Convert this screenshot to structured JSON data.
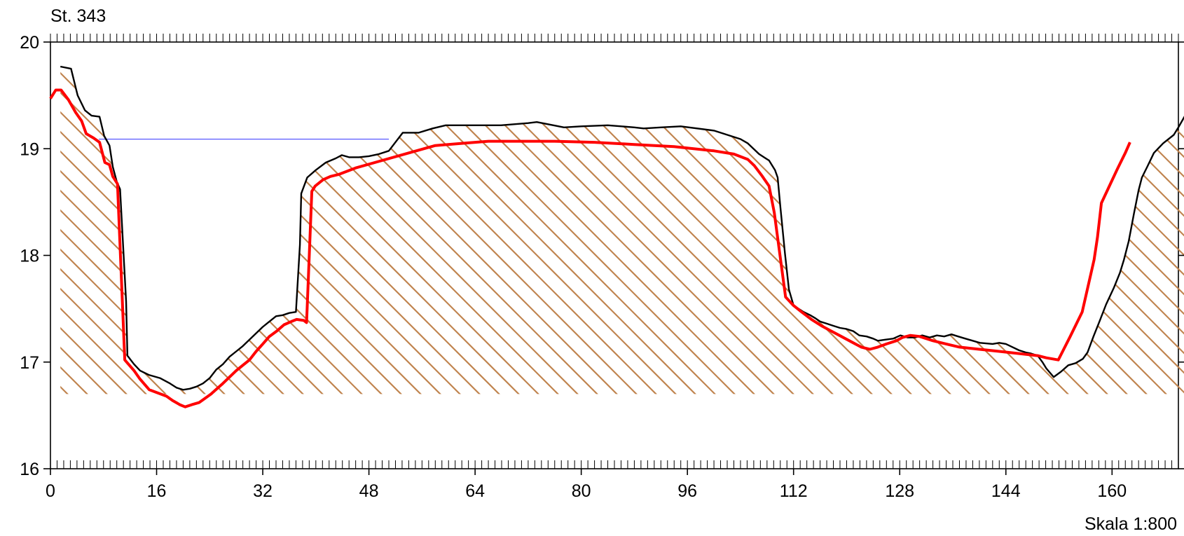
{
  "chart_data": {
    "type": "line",
    "title": "St. 343",
    "scale_label": "Skala 1:800",
    "xlim": [
      0,
      170
    ],
    "ylim": [
      16,
      20
    ],
    "x_ticks": [
      0,
      16,
      32,
      48,
      64,
      80,
      96,
      112,
      128,
      144,
      160
    ],
    "y_ticks": [
      16,
      17,
      18,
      19,
      20
    ],
    "grid": false,
    "colors": {
      "terrain": "#000000",
      "design": "#ff0000",
      "water": "#4a4aff",
      "hatch": "#c0844f"
    },
    "water_level": {
      "y": 19.09,
      "x_start": 7.3,
      "x_end": 51
    },
    "hatch_base": 16.7,
    "series": [
      {
        "key": "terrain",
        "points": [
          [
            1.5,
            19.77
          ],
          [
            3.1,
            19.75
          ],
          [
            4.1,
            19.5
          ],
          [
            5.2,
            19.36
          ],
          [
            6.2,
            19.31
          ],
          [
            7.4,
            19.3
          ],
          [
            8.1,
            19.12
          ],
          [
            8.9,
            19.03
          ],
          [
            9.4,
            18.83
          ],
          [
            10.0,
            18.69
          ],
          [
            10.5,
            18.62
          ],
          [
            11.4,
            17.57
          ],
          [
            11.6,
            17.06
          ],
          [
            12.6,
            16.98
          ],
          [
            13.5,
            16.92
          ],
          [
            14.8,
            16.88
          ],
          [
            16.5,
            16.85
          ],
          [
            18.0,
            16.8
          ],
          [
            19.0,
            16.76
          ],
          [
            20.0,
            16.74
          ],
          [
            21.0,
            16.75
          ],
          [
            22.0,
            16.77
          ],
          [
            23.0,
            16.8
          ],
          [
            24.0,
            16.85
          ],
          [
            25.0,
            16.93
          ],
          [
            26.0,
            16.98
          ],
          [
            27.0,
            17.05
          ],
          [
            28.0,
            17.1
          ],
          [
            29.0,
            17.15
          ],
          [
            30.0,
            17.21
          ],
          [
            31.0,
            17.27
          ],
          [
            32.0,
            17.33
          ],
          [
            33.0,
            17.38
          ],
          [
            34.0,
            17.43
          ],
          [
            35.0,
            17.44
          ],
          [
            36.0,
            17.46
          ],
          [
            37.0,
            17.47
          ],
          [
            37.6,
            18.1
          ],
          [
            37.8,
            18.58
          ],
          [
            38.7,
            18.73
          ],
          [
            40.0,
            18.8
          ],
          [
            41.5,
            18.87
          ],
          [
            43.0,
            18.91
          ],
          [
            43.9,
            18.94
          ],
          [
            45.0,
            18.92
          ],
          [
            46.5,
            18.92
          ],
          [
            48.0,
            18.93
          ],
          [
            49.5,
            18.95
          ],
          [
            51.0,
            18.98
          ],
          [
            53.1,
            19.15
          ],
          [
            55.5,
            19.15
          ],
          [
            57.6,
            19.19
          ],
          [
            59.6,
            19.22
          ],
          [
            63.7,
            19.22
          ],
          [
            67.9,
            19.22
          ],
          [
            72.0,
            19.24
          ],
          [
            73.3,
            19.25
          ],
          [
            75.8,
            19.22
          ],
          [
            77.4,
            19.2
          ],
          [
            80.0,
            19.21
          ],
          [
            84.0,
            19.22
          ],
          [
            88.0,
            19.2
          ],
          [
            89.4,
            19.19
          ],
          [
            92.0,
            19.2
          ],
          [
            95.0,
            19.21
          ],
          [
            100.0,
            19.17
          ],
          [
            101.0,
            19.15
          ],
          [
            104.0,
            19.09
          ],
          [
            105.1,
            19.05
          ],
          [
            106.8,
            18.95
          ],
          [
            107.8,
            18.91
          ],
          [
            108.3,
            18.89
          ],
          [
            109.2,
            18.8
          ],
          [
            109.6,
            18.73
          ],
          [
            110.0,
            18.46
          ],
          [
            110.7,
            18.02
          ],
          [
            111.3,
            17.68
          ],
          [
            112.0,
            17.53
          ],
          [
            113.5,
            17.47
          ],
          [
            114.5,
            17.44
          ],
          [
            115.3,
            17.41
          ],
          [
            116.0,
            17.38
          ],
          [
            117.0,
            17.36
          ],
          [
            118.0,
            17.34
          ],
          [
            119.0,
            17.32
          ],
          [
            120.0,
            17.31
          ],
          [
            121.0,
            17.29
          ],
          [
            121.9,
            17.25
          ],
          [
            123.0,
            17.24
          ],
          [
            124.0,
            17.22
          ],
          [
            124.7,
            17.2
          ],
          [
            125.8,
            17.21
          ],
          [
            127.0,
            17.22
          ],
          [
            128.1,
            17.25
          ],
          [
            129.2,
            17.23
          ],
          [
            130.3,
            17.23
          ],
          [
            131.4,
            17.25
          ],
          [
            132.5,
            17.23
          ],
          [
            133.6,
            17.25
          ],
          [
            134.7,
            17.24
          ],
          [
            135.8,
            17.26
          ],
          [
            136.8,
            17.24
          ],
          [
            137.9,
            17.22
          ],
          [
            139.0,
            17.2
          ],
          [
            140.1,
            17.18
          ],
          [
            142.0,
            17.17
          ],
          [
            143.0,
            17.18
          ],
          [
            144.0,
            17.17
          ],
          [
            145.0,
            17.14
          ],
          [
            146.0,
            17.11
          ],
          [
            147.0,
            17.09
          ],
          [
            147.8,
            17.08
          ],
          [
            148.8,
            17.06
          ],
          [
            149.5,
            17.0
          ],
          [
            150.1,
            16.94
          ],
          [
            151.2,
            16.86
          ],
          [
            152.3,
            16.91
          ],
          [
            153.4,
            16.97
          ],
          [
            154.5,
            16.99
          ],
          [
            155.6,
            17.03
          ],
          [
            156.3,
            17.09
          ],
          [
            157.2,
            17.24
          ],
          [
            158.1,
            17.38
          ],
          [
            159.1,
            17.54
          ],
          [
            160.3,
            17.7
          ],
          [
            161.2,
            17.84
          ],
          [
            161.8,
            17.96
          ],
          [
            162.5,
            18.13
          ],
          [
            163.3,
            18.39
          ],
          [
            164.0,
            18.61
          ],
          [
            164.5,
            18.73
          ],
          [
            165.3,
            18.83
          ],
          [
            166.3,
            18.96
          ],
          [
            167.7,
            19.05
          ],
          [
            169.3,
            19.13
          ],
          [
            170.0,
            19.2
          ],
          [
            171.0,
            19.31
          ]
        ]
      },
      {
        "key": "design",
        "points": [
          [
            0.0,
            19.47
          ],
          [
            0.8,
            19.55
          ],
          [
            1.6,
            19.55
          ],
          [
            2.7,
            19.46
          ],
          [
            3.8,
            19.34
          ],
          [
            4.7,
            19.26
          ],
          [
            5.4,
            19.14
          ],
          [
            6.5,
            19.1
          ],
          [
            7.4,
            19.06
          ],
          [
            8.2,
            18.87
          ],
          [
            8.9,
            18.85
          ],
          [
            9.4,
            18.74
          ],
          [
            10.1,
            18.67
          ],
          [
            11.2,
            17.02
          ],
          [
            12.6,
            16.92
          ],
          [
            13.5,
            16.84
          ],
          [
            14.9,
            16.74
          ],
          [
            16.2,
            16.71
          ],
          [
            17.5,
            16.68
          ],
          [
            18.4,
            16.64
          ],
          [
            19.5,
            16.6
          ],
          [
            20.3,
            16.58
          ],
          [
            21.3,
            16.6
          ],
          [
            22.4,
            16.62
          ],
          [
            23.3,
            16.66
          ],
          [
            24.2,
            16.7
          ],
          [
            25.1,
            16.75
          ],
          [
            26.0,
            16.8
          ],
          [
            27.0,
            16.86
          ],
          [
            28.0,
            16.92
          ],
          [
            29.0,
            16.97
          ],
          [
            30.0,
            17.02
          ],
          [
            31.0,
            17.1
          ],
          [
            32.0,
            17.17
          ],
          [
            33.0,
            17.24
          ],
          [
            34.1,
            17.29
          ],
          [
            35.2,
            17.35
          ],
          [
            36.3,
            17.38
          ],
          [
            37.1,
            17.4
          ],
          [
            38.2,
            17.39
          ],
          [
            38.6,
            17.37
          ],
          [
            39.4,
            18.6
          ],
          [
            39.9,
            18.65
          ],
          [
            41.1,
            18.71
          ],
          [
            42.2,
            18.74
          ],
          [
            43.5,
            18.76
          ],
          [
            46.0,
            18.82
          ],
          [
            50.0,
            18.89
          ],
          [
            54.0,
            18.96
          ],
          [
            58.0,
            19.03
          ],
          [
            62.0,
            19.05
          ],
          [
            66.0,
            19.07
          ],
          [
            70.0,
            19.07
          ],
          [
            76.0,
            19.07
          ],
          [
            82.0,
            19.06
          ],
          [
            88.0,
            19.04
          ],
          [
            94.0,
            19.02
          ],
          [
            100.0,
            18.98
          ],
          [
            103.0,
            18.95
          ],
          [
            105.1,
            18.9
          ],
          [
            106.1,
            18.84
          ],
          [
            107.2,
            18.75
          ],
          [
            108.3,
            18.65
          ],
          [
            109.1,
            18.4
          ],
          [
            110.8,
            17.61
          ],
          [
            112.0,
            17.53
          ],
          [
            113.2,
            17.47
          ],
          [
            114.7,
            17.4
          ],
          [
            116.2,
            17.34
          ],
          [
            117.7,
            17.29
          ],
          [
            119.2,
            17.24
          ],
          [
            120.7,
            17.19
          ],
          [
            122.2,
            17.14
          ],
          [
            123.5,
            17.12
          ],
          [
            124.7,
            17.14
          ],
          [
            126.0,
            17.17
          ],
          [
            127.5,
            17.2
          ],
          [
            128.4,
            17.23
          ],
          [
            129.6,
            17.25
          ],
          [
            131.0,
            17.24
          ],
          [
            133.0,
            17.2
          ],
          [
            135.0,
            17.17
          ],
          [
            137.0,
            17.14
          ],
          [
            140.0,
            17.12
          ],
          [
            143.0,
            17.1
          ],
          [
            146.0,
            17.08
          ],
          [
            148.8,
            17.06
          ],
          [
            150.1,
            17.04
          ],
          [
            151.9,
            17.02
          ],
          [
            153.7,
            17.24
          ],
          [
            155.5,
            17.47
          ],
          [
            157.3,
            17.96
          ],
          [
            157.8,
            18.17
          ],
          [
            158.4,
            18.49
          ],
          [
            159.6,
            18.65
          ],
          [
            160.8,
            18.81
          ],
          [
            162.0,
            18.96
          ],
          [
            162.7,
            19.06
          ]
        ]
      }
    ]
  }
}
